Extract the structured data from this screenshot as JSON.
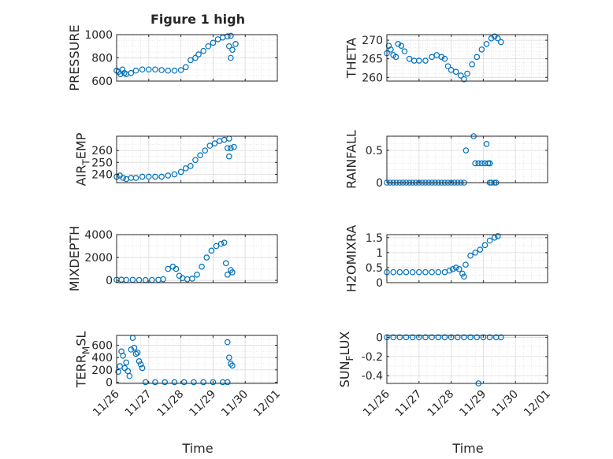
{
  "figure": {
    "title": "Figure 1 high",
    "xlabel": "Time",
    "marker_color": "#0072BD",
    "grid": true,
    "minor_grid": true
  },
  "chart_data": [
    {
      "type": "scatter",
      "id": "pressure",
      "ylabel": "PRESSURE",
      "ylabel_sub": null,
      "ylim": [
        600,
        1000
      ],
      "yticks": [
        600,
        800,
        1000
      ],
      "ytick_labels": [
        "600",
        "800",
        "1000"
      ],
      "yminor": [
        650,
        700,
        750,
        850,
        900,
        950
      ],
      "xlim": [
        0,
        5
      ],
      "show_xticklabels": false,
      "segments": [
        [
          [
            0.0,
            690
          ],
          [
            0.06,
            680
          ],
          [
            0.12,
            660
          ],
          [
            0.18,
            700
          ],
          [
            0.24,
            670
          ],
          [
            0.3,
            660
          ],
          [
            0.45,
            670
          ],
          [
            0.6,
            690
          ],
          [
            0.8,
            700
          ],
          [
            1.0,
            700
          ],
          [
            1.2,
            700
          ],
          [
            1.4,
            695
          ],
          [
            1.6,
            690
          ],
          [
            1.8,
            690
          ],
          [
            2.0,
            695
          ],
          [
            2.15,
            720
          ],
          [
            2.3,
            780
          ],
          [
            2.45,
            800
          ],
          [
            2.55,
            830
          ],
          [
            2.7,
            860
          ],
          [
            2.85,
            900
          ],
          [
            3.0,
            930
          ],
          [
            3.15,
            960
          ],
          [
            3.3,
            975
          ],
          [
            3.45,
            985
          ],
          [
            3.55,
            990
          ]
        ],
        [
          [
            3.5,
            900
          ],
          [
            3.55,
            800
          ],
          [
            3.6,
            870
          ],
          [
            3.7,
            920
          ]
        ]
      ]
    },
    {
      "type": "scatter",
      "id": "theta",
      "ylabel": "THETA",
      "ylabel_sub": null,
      "ylim": [
        259,
        271.5
      ],
      "yticks": [
        260,
        265,
        270
      ],
      "ytick_labels": [
        "260",
        "265",
        "270"
      ],
      "yminor": [
        261,
        262,
        263,
        264,
        266,
        267,
        268,
        269,
        271
      ],
      "xlim": [
        0,
        5
      ],
      "show_xticklabels": false,
      "segments": [
        [
          [
            0.0,
            266.5
          ],
          [
            0.06,
            268.5
          ],
          [
            0.12,
            267.5
          ],
          [
            0.2,
            266
          ],
          [
            0.28,
            265.5
          ],
          [
            0.35,
            269
          ],
          [
            0.45,
            268.5
          ],
          [
            0.55,
            267
          ],
          [
            0.7,
            265
          ],
          [
            0.85,
            264.5
          ],
          [
            1.0,
            264.5
          ],
          [
            1.2,
            264.5
          ],
          [
            1.4,
            265.5
          ],
          [
            1.55,
            266
          ],
          [
            1.7,
            265.5
          ],
          [
            1.8,
            265
          ],
          [
            1.9,
            263
          ],
          [
            2.0,
            262
          ],
          [
            2.15,
            261.5
          ],
          [
            2.3,
            260.5
          ],
          [
            2.4,
            259.5
          ],
          [
            2.5,
            261
          ],
          [
            2.65,
            263.5
          ],
          [
            2.8,
            265.5
          ],
          [
            2.95,
            267.5
          ],
          [
            3.1,
            269
          ],
          [
            3.25,
            270.5
          ],
          [
            3.35,
            271
          ],
          [
            3.45,
            270.5
          ],
          [
            3.55,
            269.5
          ]
        ]
      ]
    },
    {
      "type": "scatter",
      "id": "air-temp",
      "ylabel": "AIR",
      "ylabel_sub": "T",
      "ylabel_rest": "EMP",
      "ylim": [
        233,
        272
      ],
      "yticks": [
        240,
        250,
        260
      ],
      "ytick_labels": [
        "240",
        "250",
        "260"
      ],
      "yminor": [
        235,
        245,
        255,
        265,
        270
      ],
      "xlim": [
        0,
        5
      ],
      "show_xticklabels": false,
      "segments": [
        [
          [
            0.0,
            238
          ],
          [
            0.1,
            239
          ],
          [
            0.2,
            237
          ],
          [
            0.3,
            236
          ],
          [
            0.45,
            237
          ],
          [
            0.6,
            237
          ],
          [
            0.8,
            238
          ],
          [
            1.0,
            238
          ],
          [
            1.2,
            238
          ],
          [
            1.4,
            238
          ],
          [
            1.6,
            239
          ],
          [
            1.8,
            240
          ],
          [
            2.0,
            242
          ],
          [
            2.15,
            245
          ],
          [
            2.3,
            247
          ],
          [
            2.45,
            252
          ],
          [
            2.6,
            256
          ],
          [
            2.75,
            260
          ],
          [
            2.9,
            264
          ],
          [
            3.05,
            266
          ],
          [
            3.2,
            268
          ],
          [
            3.35,
            269
          ],
          [
            3.5,
            270
          ]
        ],
        [
          [
            3.45,
            262
          ],
          [
            3.5,
            255
          ],
          [
            3.55,
            262
          ],
          [
            3.65,
            263
          ]
        ]
      ]
    },
    {
      "type": "scatter",
      "id": "rainfall",
      "ylabel": "RAINFALL",
      "ylabel_sub": null,
      "ylim": [
        0,
        0.72
      ],
      "yticks": [
        0,
        0.5
      ],
      "ytick_labels": [
        "0",
        "0.5"
      ],
      "yminor": [
        0.1,
        0.2,
        0.3,
        0.4,
        0.6,
        0.7
      ],
      "xlim": [
        0,
        5
      ],
      "show_xticklabels": false,
      "segments": [
        [
          [
            0.0,
            0
          ],
          [
            0.1,
            0
          ],
          [
            0.2,
            0
          ],
          [
            0.3,
            0
          ],
          [
            0.4,
            0
          ],
          [
            0.5,
            0
          ],
          [
            0.6,
            0
          ],
          [
            0.7,
            0
          ],
          [
            0.8,
            0
          ],
          [
            0.9,
            0
          ],
          [
            1.0,
            0
          ],
          [
            1.1,
            0
          ],
          [
            1.2,
            0
          ],
          [
            1.3,
            0
          ],
          [
            1.4,
            0
          ],
          [
            1.5,
            0
          ],
          [
            1.6,
            0
          ],
          [
            1.7,
            0
          ],
          [
            1.8,
            0
          ],
          [
            1.9,
            0
          ],
          [
            2.0,
            0
          ],
          [
            2.1,
            0
          ],
          [
            2.2,
            0
          ],
          [
            2.3,
            0
          ],
          [
            2.4,
            0
          ]
        ],
        [
          [
            2.46,
            0.5
          ]
        ],
        [
          [
            2.7,
            0.72
          ],
          [
            2.75,
            0.3
          ],
          [
            2.85,
            0.3
          ],
          [
            2.95,
            0.3
          ],
          [
            3.05,
            0.3
          ],
          [
            3.15,
            0.3
          ],
          [
            3.2,
            0.3
          ]
        ],
        [
          [
            3.1,
            0.6
          ]
        ],
        [
          [
            3.25,
            0
          ],
          [
            3.35,
            0
          ],
          [
            3.4,
            0
          ]
        ],
        [
          [
            3.2,
            0.3
          ],
          [
            3.2,
            0
          ]
        ]
      ]
    },
    {
      "type": "scatter",
      "id": "mixdepth",
      "ylabel": "MIXDEPTH",
      "ylabel_sub": null,
      "ylim": [
        -200,
        4000
      ],
      "yticks": [
        0,
        2000,
        4000
      ],
      "ytick_labels": [
        "0",
        "2000",
        "4000"
      ],
      "yminor": [
        1000,
        3000
      ],
      "xlim": [
        0,
        5
      ],
      "show_xticklabels": false,
      "segments": [
        [
          [
            0.0,
            50
          ],
          [
            0.15,
            60
          ],
          [
            0.3,
            40
          ],
          [
            0.5,
            50
          ],
          [
            0.7,
            30
          ],
          [
            0.9,
            30
          ],
          [
            1.1,
            30
          ],
          [
            1.3,
            50
          ],
          [
            1.45,
            100
          ],
          [
            1.6,
            1000
          ],
          [
            1.75,
            1200
          ],
          [
            1.85,
            1000
          ],
          [
            1.95,
            400
          ],
          [
            2.05,
            200
          ],
          [
            2.2,
            100
          ],
          [
            2.35,
            150
          ],
          [
            2.5,
            500
          ],
          [
            2.65,
            1200
          ],
          [
            2.8,
            2000
          ],
          [
            2.95,
            2600
          ],
          [
            3.1,
            3000
          ],
          [
            3.25,
            3200
          ],
          [
            3.35,
            3300
          ]
        ],
        [
          [
            3.4,
            1500
          ],
          [
            3.45,
            500
          ],
          [
            3.55,
            900
          ],
          [
            3.6,
            700
          ]
        ]
      ]
    },
    {
      "type": "scatter",
      "id": "h2omixra",
      "ylabel": "H2OMIXRA",
      "ylabel_sub": null,
      "ylim": [
        0,
        1.6
      ],
      "yticks": [
        0,
        0.5,
        1,
        1.5
      ],
      "ytick_labels": [
        "0",
        "0.5",
        "1",
        "1.5"
      ],
      "yminor": [
        0.25,
        0.75,
        1.25
      ],
      "xlim": [
        0,
        5
      ],
      "show_xticklabels": false,
      "segments": [
        [
          [
            0.0,
            0.35
          ],
          [
            0.2,
            0.35
          ],
          [
            0.4,
            0.35
          ],
          [
            0.6,
            0.35
          ],
          [
            0.8,
            0.35
          ],
          [
            1.0,
            0.35
          ],
          [
            1.2,
            0.35
          ],
          [
            1.4,
            0.35
          ],
          [
            1.6,
            0.35
          ],
          [
            1.8,
            0.35
          ],
          [
            1.95,
            0.4
          ],
          [
            2.05,
            0.45
          ],
          [
            2.15,
            0.5
          ],
          [
            2.25,
            0.45
          ],
          [
            2.35,
            0.3
          ],
          [
            2.4,
            0.2
          ],
          [
            2.45,
            0.6
          ],
          [
            2.6,
            0.9
          ],
          [
            2.75,
            1.0
          ],
          [
            2.9,
            1.1
          ],
          [
            3.05,
            1.25
          ],
          [
            3.2,
            1.4
          ],
          [
            3.35,
            1.5
          ],
          [
            3.45,
            1.55
          ]
        ]
      ]
    },
    {
      "type": "scatter",
      "id": "terr-msl",
      "ylabel": "TERR",
      "ylabel_sub": "M",
      "ylabel_rest": "SL",
      "ylim": [
        -20,
        760
      ],
      "yticks": [
        0,
        200,
        400,
        600
      ],
      "ytick_labels": [
        "0",
        "200",
        "400",
        "600"
      ],
      "yminor": [
        100,
        300,
        500,
        700
      ],
      "xlim": [
        0,
        5
      ],
      "show_xticklabels": true,
      "xtick_labels": [
        "11/26",
        "11/27",
        "11/28",
        "11/29",
        "11/30",
        "12/01"
      ],
      "xticks": [
        0,
        1,
        2,
        3,
        4,
        5
      ],
      "segments": [
        [
          [
            0.05,
            170
          ],
          [
            0.1,
            260
          ],
          [
            0.15,
            500
          ],
          [
            0.2,
            430
          ],
          [
            0.25,
            230
          ],
          [
            0.3,
            320
          ],
          [
            0.35,
            180
          ],
          [
            0.4,
            100
          ],
          [
            0.45,
            530
          ],
          [
            0.5,
            720
          ],
          [
            0.55,
            560
          ],
          [
            0.6,
            460
          ],
          [
            0.65,
            480
          ],
          [
            0.7,
            340
          ],
          [
            0.75,
            290
          ],
          [
            0.8,
            230
          ]
        ],
        [
          [
            0.9,
            0
          ],
          [
            1.2,
            0
          ],
          [
            1.5,
            0
          ],
          [
            1.8,
            0
          ],
          [
            2.1,
            0
          ],
          [
            2.4,
            0
          ],
          [
            2.7,
            0
          ],
          [
            3.0,
            0
          ],
          [
            3.3,
            0
          ],
          [
            3.45,
            0
          ]
        ],
        [
          [
            3.45,
            650
          ],
          [
            3.5,
            400
          ],
          [
            3.55,
            300
          ],
          [
            3.6,
            270
          ]
        ]
      ]
    },
    {
      "type": "scatter",
      "id": "sun-flux",
      "ylabel": "SUN",
      "ylabel_sub": "F",
      "ylabel_rest": "LUX",
      "ylim": [
        -0.48,
        0.02
      ],
      "yticks": [
        -0.4,
        -0.2,
        0
      ],
      "ytick_labels": [
        "-0.4",
        "-0.2",
        "0"
      ],
      "yminor": [
        -0.3,
        -0.1
      ],
      "xlim": [
        0,
        5
      ],
      "show_xticklabels": true,
      "xtick_labels": [
        "11/26",
        "11/27",
        "11/28",
        "11/29",
        "11/30",
        "12/01"
      ],
      "xticks": [
        0,
        1,
        2,
        3,
        4,
        5
      ],
      "segments": [
        [
          [
            0.0,
            0
          ],
          [
            0.2,
            0
          ],
          [
            0.4,
            0
          ],
          [
            0.6,
            0
          ],
          [
            0.8,
            0
          ],
          [
            1.0,
            0
          ],
          [
            1.2,
            0
          ],
          [
            1.4,
            0
          ],
          [
            1.6,
            0
          ],
          [
            1.8,
            0
          ],
          [
            2.0,
            0
          ],
          [
            2.2,
            0
          ],
          [
            2.4,
            0
          ],
          [
            2.6,
            0
          ],
          [
            2.8,
            0
          ],
          [
            3.0,
            0
          ],
          [
            3.2,
            0
          ],
          [
            3.4,
            0
          ],
          [
            3.55,
            0
          ]
        ],
        [
          [
            2.85,
            -0.5
          ]
        ]
      ]
    }
  ]
}
